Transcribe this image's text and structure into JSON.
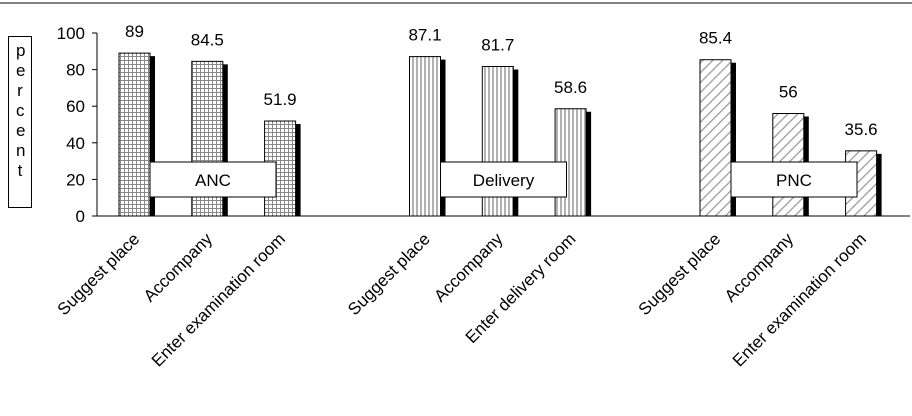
{
  "chart_data": {
    "type": "grouped-bar",
    "y_label": "percent",
    "ylim": [
      0,
      100
    ],
    "yticks": [
      0,
      20,
      40,
      60,
      80,
      100
    ],
    "groups": [
      {
        "name": "ANC",
        "pattern": "grid",
        "categories": [
          "Suggest place",
          "Accompany",
          "Enter examination room"
        ],
        "values": [
          89,
          84.5,
          51.9
        ]
      },
      {
        "name": "Delivery",
        "pattern": "vertical",
        "categories": [
          "Suggest place",
          "Accompany",
          "Enter delivery room"
        ],
        "values": [
          87.1,
          81.7,
          58.6
        ]
      },
      {
        "name": "PNC",
        "pattern": "diagonal",
        "categories": [
          "Suggest place",
          "Accompany",
          "Enter examination room"
        ],
        "values": [
          85.4,
          56,
          35.6
        ]
      }
    ]
  }
}
